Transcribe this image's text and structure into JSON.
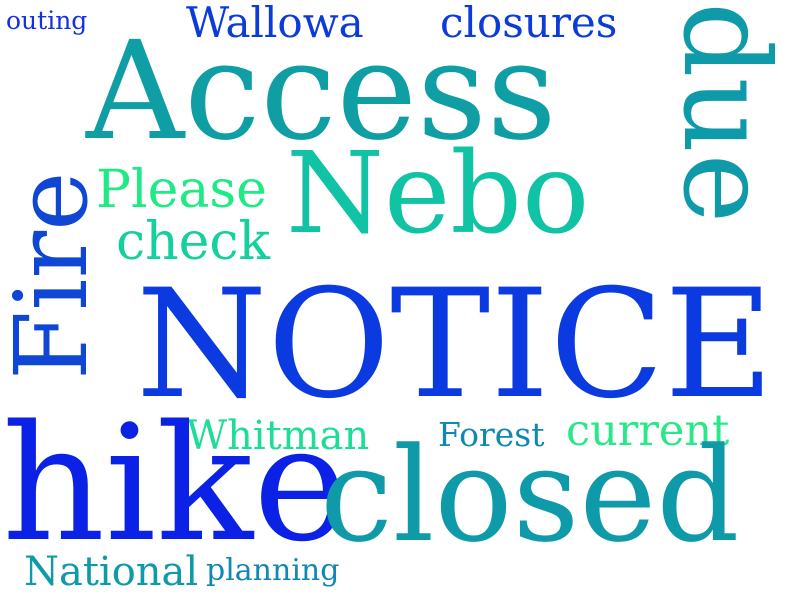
{
  "words": {
    "outing": {
      "text": "outing",
      "color": "#1530e0"
    },
    "wallowa": {
      "text": "Wallowa",
      "color": "#0b3bd8"
    },
    "closures": {
      "text": "closures",
      "color": "#0b3bd8"
    },
    "access": {
      "text": "Access",
      "color": "#0e9ea4"
    },
    "due": {
      "text": "due",
      "color": "#0e9aa8"
    },
    "please": {
      "text": "Please",
      "color": "#20ea86"
    },
    "nebo": {
      "text": "Nebo",
      "color": "#10c3a4"
    },
    "check": {
      "text": "check",
      "color": "#14d09c"
    },
    "fire": {
      "text": "Fire",
      "color": "#0f47d4"
    },
    "notice": {
      "text": "NOTICE",
      "color": "#0b3ae0"
    },
    "whitman": {
      "text": "Whitman",
      "color": "#1fdc96"
    },
    "forest": {
      "text": "Forest",
      "color": "#1187b4"
    },
    "current": {
      "text": "current",
      "color": "#2ae88a"
    },
    "hike": {
      "text": "hike",
      "color": "#0b22e6"
    },
    "closed": {
      "text": "closed",
      "color": "#0e9aa8"
    },
    "national": {
      "text": "National",
      "color": "#0e9aa8"
    },
    "planning": {
      "text": "planning",
      "color": "#1187b4"
    }
  }
}
